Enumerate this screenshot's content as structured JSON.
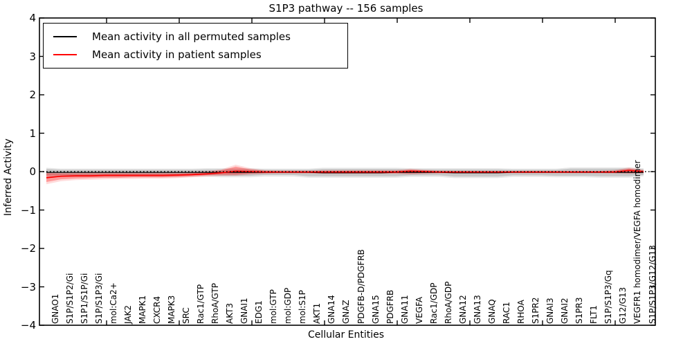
{
  "figure": {
    "title": "S1P3 pathway -- 156 samples",
    "xlabel": "Cellular Entities",
    "ylabel": "Inferred Activity"
  },
  "legend": {
    "items": [
      {
        "label": "Mean activity in all permuted samples",
        "color": "#000000"
      },
      {
        "label": "Mean activity in patient samples",
        "color": "#ff0000"
      }
    ]
  },
  "chart_data": {
    "type": "line",
    "title": "S1P3 pathway -- 156 samples",
    "xlabel": "Cellular Entities",
    "ylabel": "Inferred Activity",
    "ylim": [
      -4,
      4
    ],
    "yticks": [
      -4,
      -3,
      -2,
      -1,
      0,
      1,
      2,
      3,
      4
    ],
    "grid": false,
    "zero_reference_line": true,
    "legend_position": "upper left",
    "categories": [
      "GNAO1",
      "S1P/S1P2/Gi",
      "S1P1/S1P/Gi",
      "S1P/S1P3/Gi",
      "mol:Ca2+",
      "JAK2",
      "MAPK1",
      "CXCR4",
      "MAPK3",
      "SRC",
      "Rac1/GTP",
      "RhoA/GTP",
      "AKT3",
      "GNAI1",
      "EDG1",
      "mol:GTP",
      "mol:GDP",
      "mol:S1P",
      "AKT1",
      "GNA14",
      "GNAZ",
      "PDGFB-D/PDGFRB",
      "GNA15",
      "PDGFRB",
      "GNA11",
      "VEGFA",
      "Rac1/GDP",
      "RhoA/GDP",
      "GNA12",
      "GNA13",
      "GNAQ",
      "RAC1",
      "RHOA",
      "S1PR2",
      "GNAI3",
      "GNAI2",
      "S1PR3",
      "FLT1",
      "S1P/S1P3/Gq",
      "G12/G13",
      "VEGFR1 homodimer/VEGFA homodimer",
      "S1P/S1P3/G12/G13"
    ],
    "series": [
      {
        "name": "Mean activity in all permuted samples",
        "color": "#000000",
        "mean": [
          -0.02,
          -0.02,
          -0.02,
          -0.02,
          -0.02,
          -0.02,
          -0.02,
          -0.02,
          -0.02,
          -0.02,
          -0.02,
          -0.02,
          -0.02,
          -0.02,
          -0.02,
          -0.02,
          -0.02,
          -0.02,
          -0.02,
          -0.03,
          -0.03,
          -0.03,
          -0.03,
          -0.03,
          -0.02,
          -0.02,
          -0.02,
          -0.02,
          -0.03,
          -0.03,
          -0.03,
          -0.03,
          -0.02,
          -0.02,
          -0.02,
          -0.02,
          -0.02,
          -0.02,
          -0.02,
          -0.02,
          -0.02,
          -0.02
        ],
        "band_inner_hi": [
          0.07,
          0.05,
          0.05,
          0.05,
          0.05,
          0.05,
          0.05,
          0.05,
          0.05,
          0.05,
          0.05,
          0.06,
          0.06,
          0.06,
          0.06,
          0.05,
          0.05,
          0.05,
          0.05,
          0.07,
          0.07,
          0.07,
          0.07,
          0.07,
          0.07,
          0.06,
          0.06,
          0.06,
          0.06,
          0.06,
          0.06,
          0.06,
          0.05,
          0.05,
          0.05,
          0.05,
          0.08,
          0.08,
          0.08,
          0.08,
          0.08,
          0.06
        ],
        "band_inner_lo": [
          -0.1,
          -0.1,
          -0.1,
          -0.1,
          -0.1,
          -0.1,
          -0.1,
          -0.1,
          -0.1,
          -0.1,
          -0.09,
          -0.09,
          -0.11,
          -0.11,
          -0.11,
          -0.09,
          -0.09,
          -0.09,
          -0.12,
          -0.12,
          -0.12,
          -0.12,
          -0.12,
          -0.12,
          -0.12,
          -0.1,
          -0.1,
          -0.1,
          -0.13,
          -0.13,
          -0.13,
          -0.13,
          -0.1,
          -0.1,
          -0.1,
          -0.11,
          -0.11,
          -0.11,
          -0.12,
          -0.12,
          -0.12,
          -0.09
        ],
        "band_outer_hi": [
          0.1,
          0.08,
          0.08,
          0.08,
          0.08,
          0.08,
          0.08,
          0.08,
          0.08,
          0.08,
          0.08,
          0.09,
          0.09,
          0.09,
          0.09,
          0.08,
          0.08,
          0.08,
          0.08,
          0.1,
          0.1,
          0.1,
          0.1,
          0.1,
          0.1,
          0.09,
          0.09,
          0.09,
          0.09,
          0.09,
          0.09,
          0.09,
          0.08,
          0.08,
          0.08,
          0.08,
          0.11,
          0.11,
          0.11,
          0.11,
          0.11,
          0.09
        ],
        "band_outer_lo": [
          -0.14,
          -0.14,
          -0.14,
          -0.14,
          -0.14,
          -0.14,
          -0.14,
          -0.14,
          -0.14,
          -0.14,
          -0.13,
          -0.13,
          -0.15,
          -0.15,
          -0.15,
          -0.13,
          -0.13,
          -0.13,
          -0.16,
          -0.16,
          -0.16,
          -0.16,
          -0.16,
          -0.16,
          -0.16,
          -0.14,
          -0.14,
          -0.14,
          -0.17,
          -0.17,
          -0.17,
          -0.17,
          -0.14,
          -0.14,
          -0.14,
          -0.15,
          -0.15,
          -0.15,
          -0.16,
          -0.16,
          -0.16,
          -0.12
        ]
      },
      {
        "name": "Mean activity in patient samples",
        "color": "#ff0000",
        "mean": [
          -0.16,
          -0.12,
          -0.11,
          -0.11,
          -0.1,
          -0.1,
          -0.1,
          -0.1,
          -0.1,
          -0.09,
          -0.08,
          -0.06,
          -0.03,
          0.01,
          0.0,
          -0.01,
          -0.01,
          -0.01,
          -0.01,
          -0.01,
          -0.01,
          -0.01,
          -0.01,
          -0.01,
          -0.01,
          0.01,
          0.0,
          -0.01,
          -0.01,
          -0.01,
          -0.01,
          -0.01,
          -0.01,
          -0.01,
          -0.01,
          -0.01,
          -0.01,
          -0.01,
          -0.01,
          -0.01,
          0.03,
          0.0
        ],
        "band_inner_hi": [
          -0.04,
          -0.05,
          -0.05,
          -0.05,
          -0.05,
          -0.05,
          -0.05,
          -0.05,
          -0.05,
          -0.05,
          -0.04,
          -0.02,
          0.03,
          0.13,
          0.06,
          0.02,
          0.01,
          0.01,
          0.01,
          0.02,
          0.02,
          0.02,
          0.02,
          0.02,
          0.02,
          0.05,
          0.03,
          0.01,
          0.01,
          0.01,
          0.01,
          0.01,
          0.01,
          0.01,
          0.01,
          0.01,
          0.01,
          0.01,
          0.01,
          0.02,
          0.08,
          0.03
        ],
        "band_inner_lo": [
          -0.27,
          -0.2,
          -0.18,
          -0.17,
          -0.16,
          -0.16,
          -0.15,
          -0.15,
          -0.15,
          -0.14,
          -0.12,
          -0.1,
          -0.08,
          -0.08,
          -0.05,
          -0.04,
          -0.03,
          -0.03,
          -0.03,
          -0.04,
          -0.04,
          -0.04,
          -0.04,
          -0.04,
          -0.04,
          -0.05,
          -0.04,
          -0.03,
          -0.03,
          -0.03,
          -0.03,
          -0.03,
          -0.03,
          -0.03,
          -0.03,
          -0.03,
          -0.03,
          -0.03,
          -0.03,
          -0.03,
          -0.04,
          -0.03
        ],
        "band_outer_hi": [
          -0.01,
          -0.02,
          -0.02,
          -0.02,
          -0.02,
          -0.02,
          -0.02,
          -0.02,
          -0.02,
          -0.02,
          -0.01,
          0.01,
          0.06,
          0.18,
          0.09,
          0.04,
          0.03,
          0.03,
          0.03,
          0.04,
          0.04,
          0.04,
          0.04,
          0.04,
          0.04,
          0.08,
          0.05,
          0.03,
          0.02,
          0.02,
          0.02,
          0.02,
          0.02,
          0.02,
          0.02,
          0.02,
          0.02,
          0.02,
          0.02,
          0.04,
          0.11,
          0.05
        ],
        "band_outer_lo": [
          -0.33,
          -0.25,
          -0.22,
          -0.21,
          -0.2,
          -0.19,
          -0.19,
          -0.18,
          -0.18,
          -0.17,
          -0.15,
          -0.13,
          -0.11,
          -0.11,
          -0.08,
          -0.06,
          -0.05,
          -0.05,
          -0.05,
          -0.06,
          -0.06,
          -0.06,
          -0.06,
          -0.06,
          -0.06,
          -0.08,
          -0.06,
          -0.05,
          -0.04,
          -0.04,
          -0.04,
          -0.04,
          -0.04,
          -0.04,
          -0.04,
          -0.04,
          -0.04,
          -0.04,
          -0.04,
          -0.05,
          -0.06,
          -0.04
        ]
      }
    ]
  }
}
